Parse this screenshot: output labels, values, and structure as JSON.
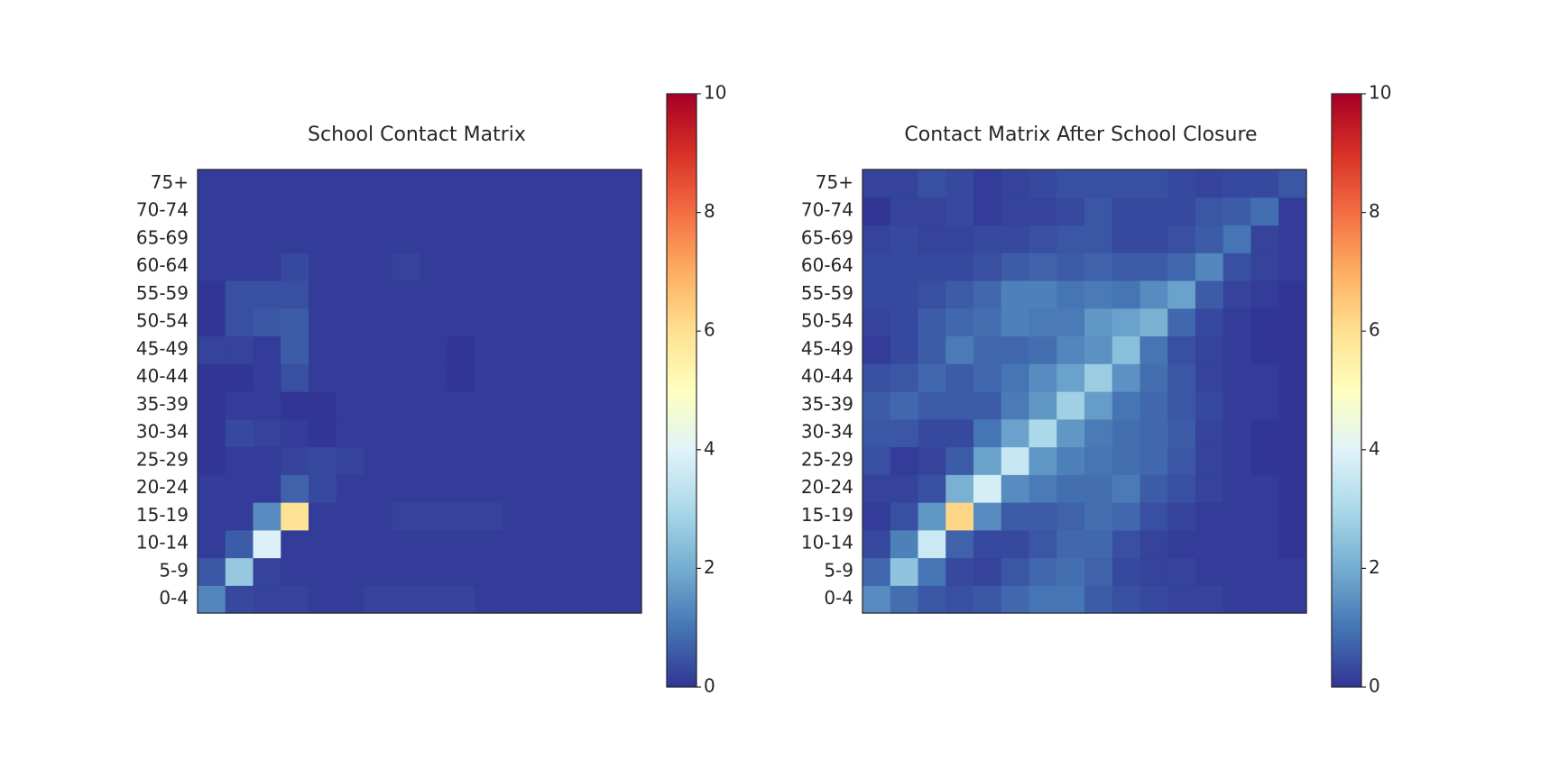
{
  "chart_data": [
    {
      "type": "heatmap",
      "title": "School Contact Matrix",
      "xlabel": "",
      "ylabel": "",
      "y_categories": [
        "0-4",
        "5-9",
        "10-14",
        "15-19",
        "20-24",
        "25-29",
        "30-34",
        "35-39",
        "40-44",
        "45-49",
        "50-54",
        "55-59",
        "60-64",
        "65-69",
        "70-74",
        "75+"
      ],
      "x_ticks_shown": false,
      "colormap": "RdYlBu_r",
      "color_range": [
        0,
        10
      ],
      "colorbar_ticks": [
        "0",
        "2",
        "4",
        "6",
        "8",
        "10"
      ],
      "grid": false,
      "rows": [
        [
          1.3,
          0.3,
          0.2,
          0.2,
          0.1,
          0.1,
          0.2,
          0.2,
          0.2,
          0.2,
          0.1,
          0.1,
          0.1,
          0.1,
          0.1,
          0.1
        ],
        [
          0.5,
          2.6,
          0.2,
          0.1,
          0.1,
          0.1,
          0.1,
          0.1,
          0.1,
          0.1,
          0.1,
          0.1,
          0.1,
          0.1,
          0.1,
          0.1
        ],
        [
          0.1,
          0.6,
          3.9,
          0.1,
          0.1,
          0.1,
          0.1,
          0.1,
          0.1,
          0.1,
          0.1,
          0.1,
          0.1,
          0.1,
          0.1,
          0.1
        ],
        [
          0.1,
          0.1,
          1.4,
          5.9,
          0.1,
          0.1,
          0.1,
          0.2,
          0.2,
          0.2,
          0.2,
          0.1,
          0.1,
          0.1,
          0.1,
          0.1
        ],
        [
          0.1,
          0.1,
          0.1,
          0.7,
          0.3,
          0.1,
          0.1,
          0.1,
          0.1,
          0.1,
          0.1,
          0.1,
          0.1,
          0.1,
          0.1,
          0.1
        ],
        [
          0.0,
          0.1,
          0.1,
          0.2,
          0.3,
          0.2,
          0.1,
          0.1,
          0.1,
          0.1,
          0.1,
          0.1,
          0.1,
          0.1,
          0.1,
          0.1
        ],
        [
          0.0,
          0.3,
          0.2,
          0.1,
          0.0,
          0.1,
          0.1,
          0.1,
          0.1,
          0.1,
          0.1,
          0.1,
          0.1,
          0.1,
          0.1,
          0.1
        ],
        [
          0.0,
          0.1,
          0.1,
          0.0,
          0.0,
          0.1,
          0.1,
          0.1,
          0.1,
          0.1,
          0.1,
          0.1,
          0.1,
          0.1,
          0.1,
          0.1
        ],
        [
          0.0,
          0.0,
          0.1,
          0.4,
          0.1,
          0.1,
          0.1,
          0.1,
          0.1,
          0.0,
          0.1,
          0.1,
          0.1,
          0.1,
          0.1,
          0.1
        ],
        [
          0.2,
          0.2,
          0.1,
          0.6,
          0.1,
          0.1,
          0.1,
          0.1,
          0.1,
          0.0,
          0.1,
          0.1,
          0.1,
          0.1,
          0.1,
          0.1
        ],
        [
          0.0,
          0.4,
          0.5,
          0.6,
          0.1,
          0.1,
          0.1,
          0.1,
          0.1,
          0.1,
          0.1,
          0.1,
          0.1,
          0.1,
          0.1,
          0.1
        ],
        [
          0.0,
          0.4,
          0.4,
          0.4,
          0.1,
          0.1,
          0.1,
          0.1,
          0.1,
          0.1,
          0.1,
          0.1,
          0.1,
          0.1,
          0.1,
          0.1
        ],
        [
          0.1,
          0.1,
          0.1,
          0.3,
          0.1,
          0.1,
          0.1,
          0.2,
          0.1,
          0.1,
          0.1,
          0.1,
          0.1,
          0.1,
          0.1,
          0.1
        ],
        [
          0.1,
          0.1,
          0.1,
          0.1,
          0.1,
          0.1,
          0.1,
          0.1,
          0.1,
          0.1,
          0.1,
          0.1,
          0.1,
          0.1,
          0.1,
          0.1
        ],
        [
          0.1,
          0.1,
          0.1,
          0.1,
          0.1,
          0.1,
          0.1,
          0.1,
          0.1,
          0.1,
          0.1,
          0.1,
          0.1,
          0.1,
          0.1,
          0.1
        ],
        [
          0.1,
          0.1,
          0.1,
          0.1,
          0.1,
          0.1,
          0.1,
          0.1,
          0.1,
          0.1,
          0.1,
          0.1,
          0.1,
          0.1,
          0.1,
          0.1
        ]
      ]
    },
    {
      "type": "heatmap",
      "title": "Contact Matrix After School Closure",
      "xlabel": "",
      "ylabel": "",
      "y_categories": [
        "0-4",
        "5-9",
        "10-14",
        "15-19",
        "20-24",
        "25-29",
        "30-34",
        "35-39",
        "40-44",
        "45-49",
        "50-54",
        "55-59",
        "60-64",
        "65-69",
        "70-74",
        "75+"
      ],
      "x_ticks_shown": false,
      "colormap": "RdYlBu_r",
      "color_range": [
        0,
        10
      ],
      "colorbar_ticks": [
        "0",
        "2",
        "4",
        "6",
        "8",
        "10"
      ],
      "grid": false,
      "rows": [
        [
          1.4,
          0.9,
          0.5,
          0.4,
          0.5,
          0.8,
          1.0,
          1.0,
          0.6,
          0.4,
          0.3,
          0.2,
          0.2,
          0.1,
          0.1,
          0.1
        ],
        [
          0.8,
          2.5,
          1.0,
          0.3,
          0.2,
          0.5,
          0.8,
          0.9,
          0.7,
          0.3,
          0.2,
          0.2,
          0.1,
          0.1,
          0.1,
          0.1
        ],
        [
          0.3,
          1.2,
          3.6,
          0.7,
          0.3,
          0.3,
          0.5,
          0.8,
          0.8,
          0.4,
          0.2,
          0.1,
          0.1,
          0.1,
          0.1,
          0.0
        ],
        [
          0.1,
          0.4,
          1.6,
          6.2,
          1.4,
          0.6,
          0.6,
          0.7,
          0.9,
          0.8,
          0.4,
          0.2,
          0.1,
          0.1,
          0.1,
          0.0
        ],
        [
          0.2,
          0.2,
          0.4,
          2.1,
          3.8,
          1.4,
          1.1,
          0.9,
          0.9,
          1.1,
          0.6,
          0.4,
          0.2,
          0.1,
          0.1,
          0.0
        ],
        [
          0.4,
          0.1,
          0.2,
          0.6,
          1.8,
          3.5,
          1.6,
          1.2,
          1.0,
          0.9,
          0.8,
          0.5,
          0.2,
          0.1,
          0.0,
          0.0
        ],
        [
          0.5,
          0.5,
          0.3,
          0.3,
          1.0,
          1.8,
          3.0,
          1.6,
          1.1,
          0.9,
          0.8,
          0.6,
          0.2,
          0.1,
          0.0,
          0.0
        ],
        [
          0.6,
          0.8,
          0.6,
          0.6,
          0.6,
          1.1,
          1.6,
          2.8,
          1.7,
          1.0,
          0.8,
          0.5,
          0.3,
          0.1,
          0.1,
          0.0
        ],
        [
          0.4,
          0.5,
          0.8,
          0.6,
          0.8,
          1.0,
          1.4,
          1.8,
          2.7,
          1.5,
          0.9,
          0.5,
          0.2,
          0.1,
          0.1,
          0.0
        ],
        [
          0.1,
          0.3,
          0.6,
          1.1,
          0.8,
          0.8,
          0.9,
          1.3,
          1.5,
          2.4,
          1.0,
          0.4,
          0.2,
          0.1,
          0.0,
          0.0
        ],
        [
          0.2,
          0.3,
          0.6,
          0.8,
          0.9,
          1.2,
          1.1,
          1.1,
          1.6,
          1.8,
          2.1,
          0.8,
          0.3,
          0.1,
          0.0,
          0.0
        ],
        [
          0.3,
          0.3,
          0.4,
          0.6,
          0.8,
          1.2,
          1.2,
          1.0,
          1.1,
          1.0,
          1.4,
          1.8,
          0.6,
          0.2,
          0.1,
          0.0
        ],
        [
          0.3,
          0.3,
          0.3,
          0.3,
          0.4,
          0.6,
          0.7,
          0.6,
          0.7,
          0.6,
          0.6,
          0.8,
          1.3,
          0.4,
          0.2,
          0.1
        ],
        [
          0.2,
          0.3,
          0.2,
          0.2,
          0.3,
          0.3,
          0.4,
          0.5,
          0.5,
          0.3,
          0.3,
          0.4,
          0.6,
          1.0,
          0.2,
          0.1
        ],
        [
          0.0,
          0.2,
          0.2,
          0.3,
          0.1,
          0.2,
          0.2,
          0.3,
          0.5,
          0.3,
          0.3,
          0.3,
          0.5,
          0.6,
          0.9,
          0.1
        ],
        [
          0.2,
          0.2,
          0.4,
          0.3,
          0.1,
          0.2,
          0.3,
          0.4,
          0.4,
          0.4,
          0.4,
          0.3,
          0.2,
          0.3,
          0.3,
          0.5
        ]
      ]
    }
  ]
}
